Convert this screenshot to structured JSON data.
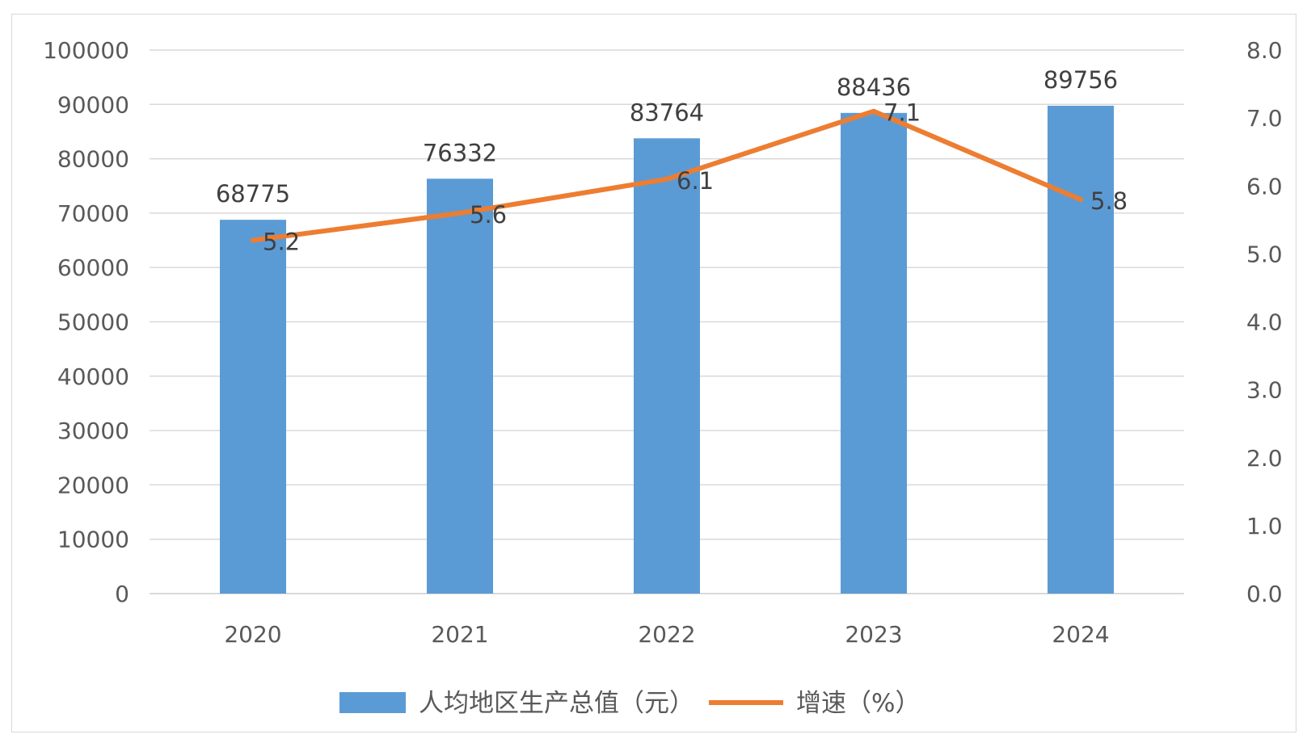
{
  "chart_data": {
    "type": "bar",
    "categories": [
      "2020",
      "2021",
      "2022",
      "2023",
      "2024"
    ],
    "series": [
      {
        "name": "人均地区生产总值（元）",
        "type": "bar",
        "axis": "left",
        "values": [
          68775,
          76332,
          83764,
          88436,
          89756
        ],
        "labels": [
          "68775",
          "76332",
          "83764",
          "88436",
          "89756"
        ],
        "color": "#5b9bd5"
      },
      {
        "name": "增速（%）",
        "type": "line",
        "axis": "right",
        "values": [
          5.2,
          5.6,
          6.1,
          7.1,
          5.8
        ],
        "labels": [
          "5.2",
          "5.6",
          "6.1",
          "7.1",
          "5.8"
        ],
        "color": "#ed7d31"
      }
    ],
    "left_axis": {
      "ylim": [
        0,
        100000
      ],
      "ticks": [
        "0",
        "10000",
        "20000",
        "30000",
        "40000",
        "50000",
        "60000",
        "70000",
        "80000",
        "90000",
        "100000"
      ]
    },
    "right_axis": {
      "ylim": [
        0,
        8
      ],
      "ticks": [
        "0.0",
        "1.0",
        "2.0",
        "3.0",
        "4.0",
        "5.0",
        "6.0",
        "7.0",
        "8.0"
      ]
    },
    "grid": true,
    "legend_position": "bottom",
    "gridline_color": "#d9d9d9"
  }
}
